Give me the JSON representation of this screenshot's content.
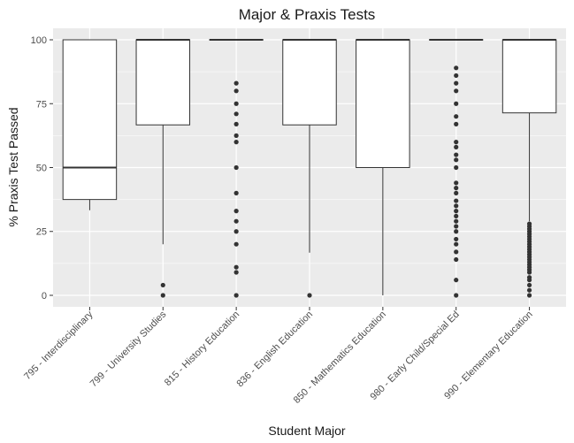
{
  "chart_data": {
    "type": "box",
    "title": "Major & Praxis Tests",
    "xlabel": "Student Major",
    "ylabel": "% Praxis Test Passed",
    "ylim": [
      -4.5,
      104.5
    ],
    "yticks": [
      0,
      25,
      50,
      75,
      100
    ],
    "grid": true,
    "legend": "none",
    "categories": [
      "795 - Interdisciplinary",
      "799 - University Studies",
      "815 - History Education",
      "836 - English Education",
      "850 - Mathematics Education",
      "980 - Early Child/Special Ed",
      "990 - Elementary Education"
    ],
    "boxes": [
      {
        "lower_whisker": 33.3,
        "q1": 37.5,
        "median": 50,
        "q3": 100,
        "upper_whisker": 100,
        "outliers": []
      },
      {
        "lower_whisker": 20,
        "q1": 66.7,
        "median": 100,
        "q3": 100,
        "upper_whisker": 100,
        "outliers": [
          0,
          4
        ]
      },
      {
        "lower_whisker": 100,
        "q1": 100,
        "median": 100,
        "q3": 100,
        "upper_whisker": 100,
        "outliers": [
          0,
          9,
          11,
          20,
          25,
          29,
          33,
          40,
          50,
          60,
          62.5,
          67,
          71,
          75,
          80,
          83
        ]
      },
      {
        "lower_whisker": 16.7,
        "q1": 66.7,
        "median": 100,
        "q3": 100,
        "upper_whisker": 100,
        "outliers": [
          0
        ]
      },
      {
        "lower_whisker": 0,
        "q1": 50,
        "median": 100,
        "q3": 100,
        "upper_whisker": 100,
        "outliers": []
      },
      {
        "lower_whisker": 100,
        "q1": 100,
        "median": 100,
        "q3": 100,
        "upper_whisker": 100,
        "outliers": [
          0,
          6,
          14,
          17,
          20,
          22,
          25,
          27,
          29,
          31,
          33,
          35,
          37,
          40,
          42,
          44,
          50,
          53,
          55,
          58,
          60,
          67,
          70,
          75,
          80,
          83,
          86,
          89
        ]
      },
      {
        "lower_whisker": 29,
        "q1": 71.4,
        "median": 100,
        "q3": 100,
        "upper_whisker": 100,
        "outliers": [
          0,
          2,
          4,
          6,
          7,
          9,
          10,
          11,
          12,
          13,
          14,
          15,
          16,
          17,
          18,
          19,
          20,
          21,
          22,
          23,
          24,
          25,
          26,
          27,
          28
        ]
      }
    ],
    "colors": {
      "panel": "#ebebeb",
      "grid": "#ffffff",
      "box_fill": "#ffffff",
      "line": "#333333",
      "point": "#333333"
    }
  }
}
